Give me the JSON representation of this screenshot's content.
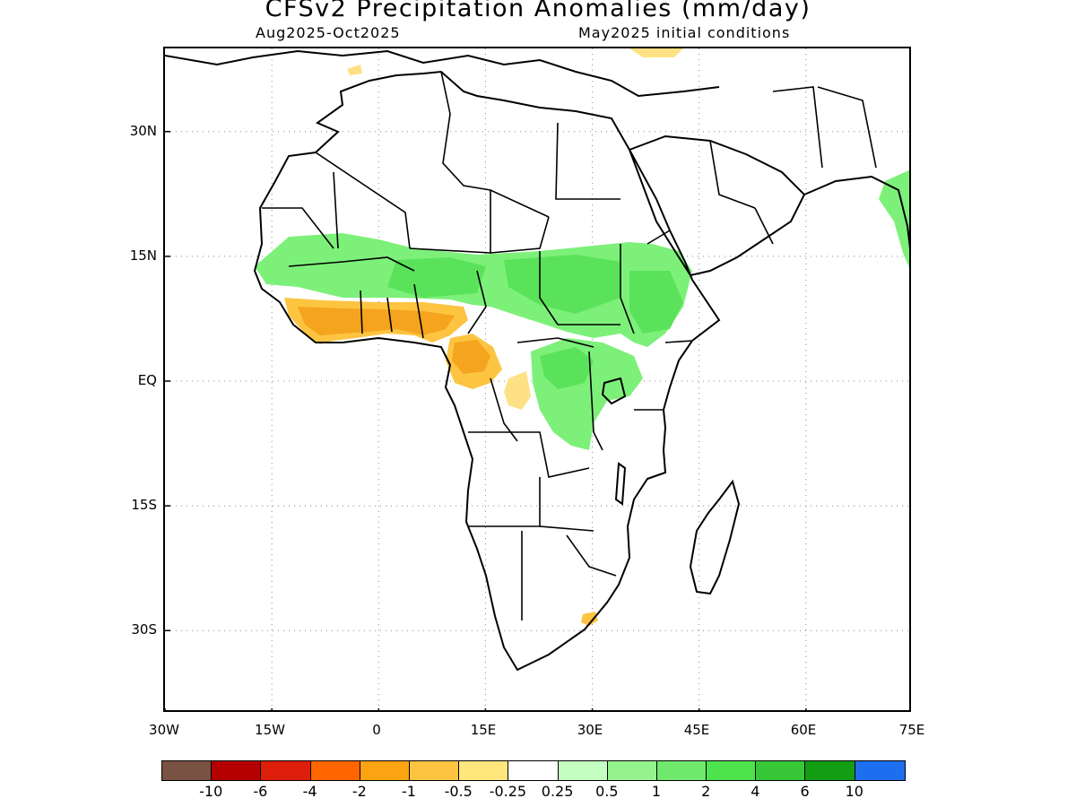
{
  "title": "CFSv2 Precipitation Anomalies (mm/day)",
  "period": "Aug2025-Oct2025",
  "init": "May2025 initial conditions",
  "map": {
    "region": "Africa",
    "lon_range": [
      -30,
      75
    ],
    "lat_range": [
      -40,
      40
    ],
    "grid": "dotted",
    "lat_labels": [
      "30N",
      "15N",
      "EQ",
      "15S",
      "30S"
    ],
    "lon_labels": [
      "30W",
      "15W",
      "0",
      "15E",
      "30E",
      "45E",
      "60E",
      "75E"
    ],
    "anomaly_regions": [
      {
        "name": "guinea-coast-dry",
        "category": "-2 to -1",
        "color": "#f5a41e"
      },
      {
        "name": "cameroon-gabon-dry",
        "category": "-1 to -0.5",
        "color": "#fbc33e"
      },
      {
        "name": "sahel-wet",
        "category": "0.5 to 1",
        "color": "#7df07a"
      },
      {
        "name": "ethiopia-wet",
        "category": "1 to 2",
        "color": "#5ae35a"
      },
      {
        "name": "congo-wet",
        "category": "0.5 to 1",
        "color": "#7df07a"
      },
      {
        "name": "india-west-coast-wet",
        "category": "0.5 to 1",
        "color": "#7df07a"
      },
      {
        "name": "south-africa-dry",
        "category": "-0.5 to -0.25",
        "color": "#fde184"
      }
    ]
  },
  "colorbar": {
    "colors": [
      "#7a5243",
      "#b40000",
      "#dc1e0a",
      "#ff6600",
      "#fca311",
      "#fcc441",
      "#ffe67d",
      "#ffffff",
      "#c4ffc1",
      "#95f38e",
      "#70e86c",
      "#4ce34c",
      "#37c737",
      "#139d13",
      "#1e6ef0"
    ],
    "labels": [
      "-10",
      "-6",
      "-4",
      "-2",
      "-1",
      "-0.5",
      "-0.25",
      "0.25",
      "0.5",
      "1",
      "2",
      "4",
      "6",
      "10"
    ]
  }
}
